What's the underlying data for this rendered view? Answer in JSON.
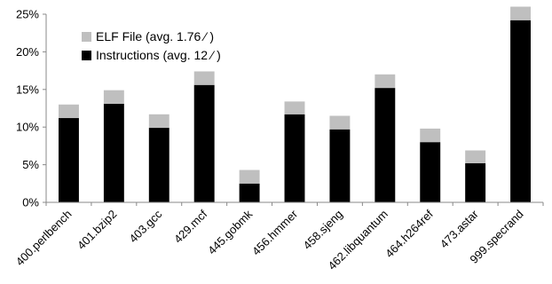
{
  "chart_data": {
    "type": "bar",
    "stacked": true,
    "categories": [
      "400.perlbench",
      "401.bzip2",
      "403.gcc",
      "429.mcf",
      "445.gobmk",
      "456.hmmer",
      "458.sjeng",
      "462.libquantum",
      "464.h264ref",
      "473.astar",
      "999.specrand"
    ],
    "series": [
      {
        "name": "Instructions (avg. 12 ⁄ )",
        "color": "#000000",
        "values": [
          11.2,
          13.1,
          9.9,
          15.6,
          2.5,
          11.7,
          9.7,
          15.2,
          8.0,
          5.2,
          24.2
        ]
      },
      {
        "name": "ELF File (avg. 1.76 ⁄ )",
        "color": "#bfbfbf",
        "values": [
          1.8,
          1.8,
          1.8,
          1.8,
          1.8,
          1.7,
          1.8,
          1.8,
          1.8,
          1.7,
          1.8
        ]
      }
    ],
    "ylim": [
      0,
      25
    ],
    "yticks": [
      "0%",
      "5%",
      "10%",
      "15%",
      "20%",
      "25%"
    ],
    "grid": false,
    "legend": "top-left",
    "title": "",
    "xlabel": "",
    "ylabel": ""
  }
}
